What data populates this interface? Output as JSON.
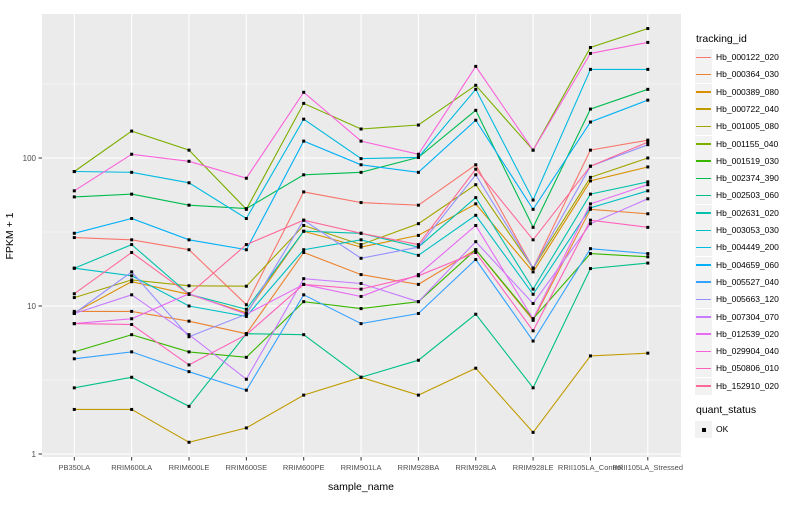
{
  "chart_data": {
    "type": "line",
    "title": "",
    "xlabel": "sample_name",
    "ylabel": "FPKM + 1",
    "y_scale": "log10",
    "y_ticks": [
      1,
      10,
      100
    ],
    "y_minor_ticks": [
      3.162,
      31.62,
      316.2
    ],
    "ylim": [
      1,
      1000
    ],
    "grid": "on",
    "legend_position": "right",
    "point_marker": "black-square",
    "categories": [
      "PB350LA",
      "RRIM600LA",
      "RRIM600LE",
      "RRIM600SE",
      "RRIM600PE",
      "RRIM901LA",
      "RRIM928BA",
      "RRIM928LA",
      "RRIM928LE",
      "RRII105LA_Control",
      "RRII105LA_Stressed"
    ],
    "series": [
      {
        "name": "Hb_000122_020",
        "color": "#F8766D",
        "values": [
          29,
          28,
          24,
          10.2,
          59,
          50,
          48,
          90,
          18,
          113,
          132
        ]
      },
      {
        "name": "Hb_000364_030",
        "color": "#EA8331",
        "values": [
          9.2,
          9.2,
          7.9,
          6.5,
          23,
          16.3,
          14,
          24,
          8,
          45,
          42
        ]
      },
      {
        "name": "Hb_000389_080",
        "color": "#D89000",
        "values": [
          9,
          14.6,
          12,
          9,
          32,
          25,
          30,
          49,
          17,
          70,
          87
        ]
      },
      {
        "name": "Hb_000722_040",
        "color": "#C09B00",
        "values": [
          2,
          2,
          1.2,
          1.5,
          2.5,
          3.3,
          2.5,
          3.8,
          1.4,
          4.6,
          4.8
        ]
      },
      {
        "name": "Hb_001005_080",
        "color": "#A3A500",
        "values": [
          11.4,
          15,
          13.7,
          13.6,
          35,
          26,
          36,
          66,
          18,
          74,
          100
        ]
      },
      {
        "name": "Hb_001155_040",
        "color": "#7CAE00",
        "values": [
          81,
          152,
          113,
          45,
          234,
          157,
          167,
          310,
          113,
          558,
          750
        ]
      },
      {
        "name": "Hb_001519_030",
        "color": "#39B600",
        "values": [
          4.9,
          6.4,
          4.9,
          4.5,
          10.7,
          9.6,
          10.7,
          24,
          8.2,
          22.6,
          21.5
        ]
      },
      {
        "name": "Hb_002374_390",
        "color": "#00BB4E",
        "values": [
          54.6,
          57,
          48,
          45.5,
          77,
          80,
          101,
          210,
          34,
          214,
          291
        ]
      },
      {
        "name": "Hb_002503_060",
        "color": "#00C087",
        "values": [
          2.8,
          3.3,
          2.1,
          6.5,
          6.4,
          3.3,
          4.3,
          8.8,
          2.8,
          17.9,
          19.5
        ]
      },
      {
        "name": "Hb_002631_020",
        "color": "#00C1AB",
        "values": [
          18,
          26,
          12,
          9.5,
          32,
          31,
          25,
          54,
          13,
          57,
          69
        ]
      },
      {
        "name": "Hb_003053_030",
        "color": "#00BFC4",
        "values": [
          18,
          16,
          10,
          8.5,
          24,
          28,
          22,
          41,
          12,
          46,
          60
        ]
      },
      {
        "name": "Hb_004449_200",
        "color": "#00BAE0",
        "values": [
          81,
          80,
          68,
          39,
          183,
          99,
          101,
          291,
          52,
          397,
          397
        ]
      },
      {
        "name": "Hb_004659_060",
        "color": "#00B0F6",
        "values": [
          31,
          39,
          28,
          24,
          130,
          90,
          80,
          180,
          45,
          175,
          246
        ]
      },
      {
        "name": "Hb_005527_040",
        "color": "#35A2FF",
        "values": [
          4.4,
          4.9,
          3.6,
          2.7,
          11.9,
          7.6,
          8.9,
          20.6,
          5.8,
          24.4,
          22.6
        ]
      },
      {
        "name": "Hb_005663_120",
        "color": "#9590FF",
        "values": [
          8.9,
          17,
          6.2,
          8.8,
          38,
          21,
          25,
          77,
          18,
          88,
          123
        ]
      },
      {
        "name": "Hb_007304_070",
        "color": "#C77CFF",
        "values": [
          8.9,
          11.9,
          6.4,
          3.2,
          15.3,
          14.2,
          10.7,
          27.2,
          10.4,
          36,
          53
        ]
      },
      {
        "name": "Hb_012539_020",
        "color": "#E76BF3",
        "values": [
          7.6,
          8.2,
          12.1,
          8.8,
          14,
          11.6,
          16.3,
          35,
          8.2,
          49,
          66
        ]
      },
      {
        "name": "Hb_029904_040",
        "color": "#FA62DB",
        "values": [
          60,
          106,
          95,
          73,
          278,
          130,
          106,
          416,
          113,
          509,
          604
        ]
      },
      {
        "name": "Hb_050806_010",
        "color": "#FF62BC",
        "values": [
          7.6,
          7.5,
          4,
          6.4,
          14,
          13,
          16,
          23,
          6.8,
          38,
          34
        ]
      },
      {
        "name": "Hb_152910_020",
        "color": "#FF6A98",
        "values": [
          12.1,
          23,
          12,
          26,
          38,
          31,
          26,
          84,
          28,
          88,
          128
        ]
      }
    ]
  },
  "legend": {
    "tracking_title": "tracking_id",
    "quant_title": "quant_status",
    "quant_ok_label": "OK"
  },
  "axes": {
    "x_title": "sample_name",
    "y_title": "FPKM + 1"
  },
  "colors": {
    "panel_bg": "#EBEBEB",
    "gridline": "#FFFFFF",
    "legend_key_bg": "#F2F2F2",
    "axis_text": "#4D4D4D",
    "tick_mark": "#333333",
    "point": "#000000"
  }
}
